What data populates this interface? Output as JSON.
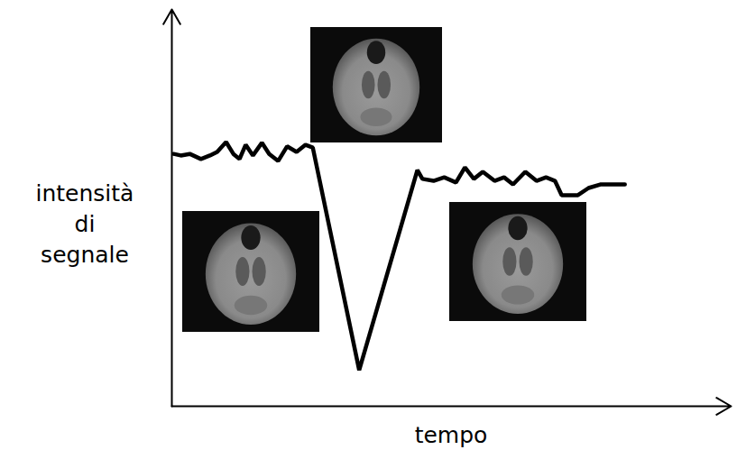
{
  "chart_data": {
    "type": "line",
    "x_label": "tempo",
    "y_label": "intensità di segnale",
    "x": [
      0.3,
      1.6,
      3.2,
      5.2,
      6.8,
      8.1,
      9.7,
      11.0,
      12.1,
      13.2,
      14.5,
      16.1,
      17.4,
      19.0,
      20.6,
      22.3,
      23.9,
      25.2,
      33.5,
      43.9,
      44.8,
      46.8,
      48.7,
      50.8,
      52.4,
      54.0,
      55.6,
      57.7,
      59.4,
      61.0,
      63.2,
      65.2,
      66.9,
      68.5,
      69.7,
      72.6,
      74.5,
      76.6,
      81.0
    ],
    "values": [
      63.6,
      63.2,
      63.6,
      62.3,
      63.2,
      64.1,
      66.6,
      63.6,
      62.3,
      65.9,
      63.2,
      66.4,
      63.6,
      61.8,
      65.5,
      64.1,
      65.9,
      65.2,
      9.1,
      59.5,
      57.3,
      56.8,
      57.7,
      56.4,
      60.2,
      57.3,
      59.1,
      56.8,
      57.7,
      55.9,
      59.1,
      56.8,
      57.7,
      56.8,
      53.2,
      53.2,
      55.0,
      55.9,
      55.9
    ],
    "color": "#000000",
    "xlim": [
      0,
      100
    ],
    "ylim": [
      0,
      100
    ],
    "xticks": [],
    "yticks": [],
    "tick_labels": false,
    "grid": false
  }
}
